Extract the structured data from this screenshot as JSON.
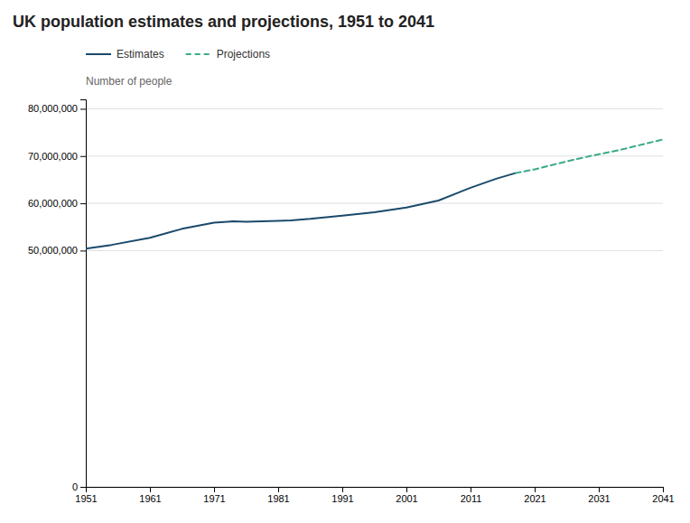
{
  "chart_data": {
    "type": "line",
    "title": "UK population estimates and projections, 1951 to 2041",
    "y_label": "Number of people",
    "series": [
      {
        "name": "Estimates",
        "color": "#1a4a6b",
        "line_style": "solid",
        "x": [
          1951,
          1955,
          1961,
          1966,
          1971,
          1974,
          1976,
          1981,
          1983,
          1986,
          1991,
          1996,
          2001,
          2006,
          2011,
          2015,
          2018
        ],
        "values": [
          50400000,
          51200000,
          52700000,
          54600000,
          55900000,
          56200000,
          56100000,
          56300000,
          56400000,
          56700000,
          57400000,
          58100000,
          59100000,
          60600000,
          63300000,
          65200000,
          66400000
        ]
      },
      {
        "name": "Projections",
        "color": "#3aaa8a",
        "line_style": "dashed",
        "x": [
          2018,
          2021,
          2024,
          2027,
          2031,
          2034,
          2037,
          2041
        ],
        "values": [
          66400000,
          67200000,
          68200000,
          69200000,
          70400000,
          71200000,
          72200000,
          73500000
        ]
      }
    ],
    "xlim": [
      1951,
      2041
    ],
    "xticks": [
      1951,
      1961,
      1971,
      1981,
      1991,
      2001,
      2011,
      2021,
      2031,
      2041
    ],
    "ylim": [
      0,
      82000000
    ],
    "yticks": [
      0,
      {
        "value": 50000000,
        "label": "50,000,000"
      },
      {
        "value": 60000000,
        "label": "60,000,000"
      },
      {
        "value": 70000000,
        "label": "70,000,000"
      },
      {
        "value": 80000000,
        "label": "80,000,000"
      }
    ],
    "grid": true,
    "legend": "top-left"
  }
}
